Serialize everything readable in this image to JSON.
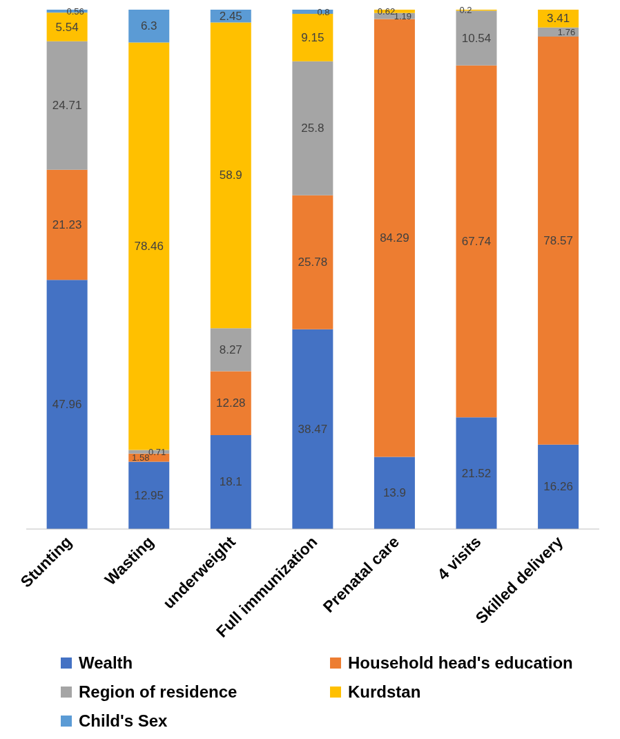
{
  "chart_data": {
    "type": "bar",
    "stacked": true,
    "data_labels": true,
    "legend": "bottom",
    "grid": false,
    "categories": [
      "Stunting",
      "Wasting",
      "underweight",
      "Full immunization",
      "Prenatal care",
      "4 visits",
      "Skilled delivery"
    ],
    "series": [
      {
        "name": "Wealth",
        "color": "#4472c4",
        "values": [
          47.96,
          12.95,
          18.1,
          38.47,
          13.9,
          21.52,
          16.26
        ]
      },
      {
        "name": "Household head's education",
        "color": "#ed7d31",
        "values": [
          21.23,
          1.58,
          12.28,
          25.78,
          84.29,
          67.74,
          78.57
        ]
      },
      {
        "name": "Region of residence",
        "color": "#a5a5a5",
        "values": [
          24.71,
          0.71,
          8.27,
          25.8,
          1.19,
          10.54,
          1.76
        ]
      },
      {
        "name": "Kurdstan",
        "color": "#ffc000",
        "values": [
          5.54,
          78.46,
          58.9,
          9.15,
          0.62,
          0.2,
          3.41
        ]
      },
      {
        "name": "Child's Sex",
        "color": "#5b9bd5",
        "values": [
          0.56,
          6.3,
          2.45,
          0.8,
          null,
          null,
          null
        ]
      }
    ]
  }
}
